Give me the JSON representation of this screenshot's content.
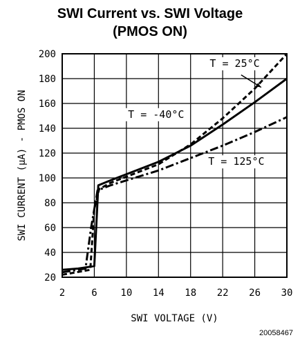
{
  "chart_data": {
    "type": "line",
    "title": "SWI Current vs. SWI Voltage",
    "subtitle": "(PMOS ON)",
    "xlabel": "SWI VOLTAGE (V)",
    "ylabel": "SWI CURRENT (μA) - PMOS ON",
    "xlim": [
      2,
      30
    ],
    "ylim": [
      20,
      200
    ],
    "xticks": [
      "2",
      "6",
      "10",
      "14",
      "18",
      "22",
      "26",
      "30"
    ],
    "yticks": [
      "20",
      "40",
      "60",
      "80",
      "100",
      "120",
      "140",
      "160",
      "180",
      "200"
    ],
    "grid": true,
    "figure_id": "20058467",
    "series": [
      {
        "name": "T = 25°C",
        "style": "dashed",
        "x": [
          2,
          5.5,
          6.0,
          6.6,
          8,
          10,
          14,
          18,
          22,
          26,
          30
        ],
        "y": [
          22,
          26,
          75,
          91,
          96,
          101,
          111,
          127,
          148,
          172,
          200
        ]
      },
      {
        "name": "T = -40°C",
        "style": "solid",
        "x": [
          2,
          4,
          5,
          6.0,
          6.5,
          8,
          10,
          14,
          18,
          22,
          26,
          30
        ],
        "y": [
          26,
          27,
          28,
          29,
          94,
          98,
          103,
          113,
          126,
          143,
          161,
          180
        ]
      },
      {
        "name": "T = 125°C",
        "style": "dashdot",
        "x": [
          2,
          4,
          4.9,
          5.6,
          6.4,
          8,
          10,
          14,
          18,
          22,
          26,
          30
        ],
        "y": [
          24,
          26,
          27,
          60,
          90,
          94,
          98,
          106,
          116,
          126,
          137,
          149
        ]
      }
    ]
  }
}
